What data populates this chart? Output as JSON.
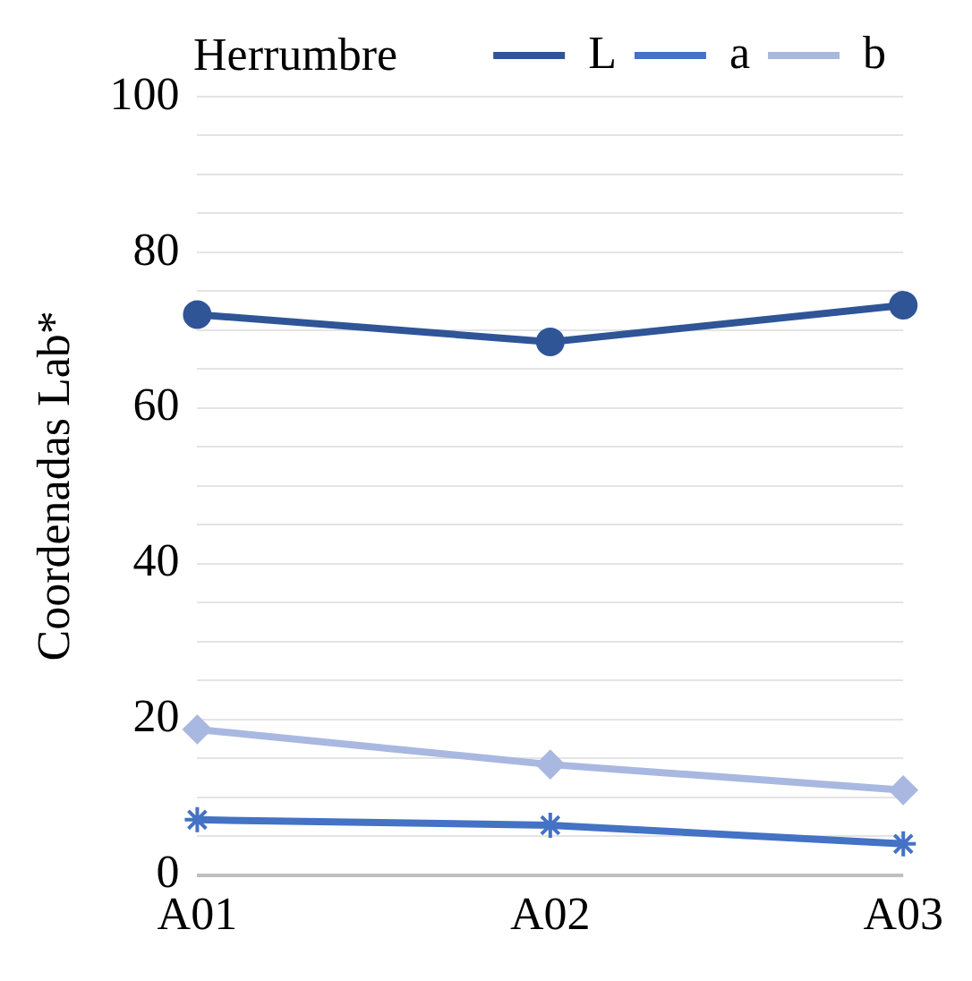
{
  "chart_data": {
    "type": "line",
    "legend_title": "Herrumbre",
    "ylabel": "Coordenadas Lab*",
    "categories": [
      "A01",
      "A02",
      "A03"
    ],
    "series": [
      {
        "name": "L",
        "color": "#2f5597",
        "values": [
          72.0,
          68.5,
          73.2
        ],
        "marker": "circle"
      },
      {
        "name": "a",
        "color": "#4472c4",
        "values": [
          7.1,
          6.4,
          4.0
        ],
        "marker": "cross"
      },
      {
        "name": "b",
        "color": "#a9b8e0",
        "values": [
          18.7,
          14.2,
          10.9
        ],
        "marker": "diamond"
      }
    ],
    "ylim": [
      0,
      100
    ],
    "yticks": [
      0,
      {
        "value": 5,
        "label": null
      },
      {
        "value": 10,
        "label": null
      },
      {
        "value": 15,
        "label": null
      },
      20,
      {
        "value": 25,
        "label": null
      },
      {
        "value": 30,
        "label": null
      },
      {
        "value": 35,
        "label": null
      },
      40,
      {
        "value": 45,
        "label": null
      },
      {
        "value": 50,
        "label": null
      },
      {
        "value": 55,
        "label": null
      },
      60,
      {
        "value": 65,
        "label": null
      },
      {
        "value": 70,
        "label": null
      },
      {
        "value": 75,
        "label": null
      },
      80,
      {
        "value": 85,
        "label": null
      },
      {
        "value": 90,
        "label": null
      },
      {
        "value": 95,
        "label": null
      },
      100
    ],
    "grid": "y",
    "legend": "top right",
    "line_style": "solid"
  }
}
